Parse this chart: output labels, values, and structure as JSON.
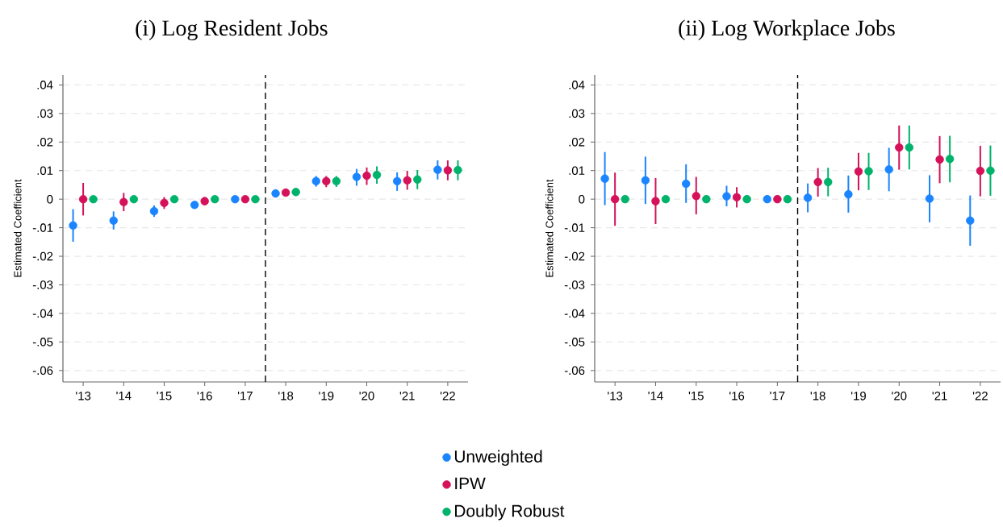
{
  "chart_data": [
    {
      "type": "scatter",
      "title": "(i) Log Resident Jobs",
      "ylabel": "Estimated Coefficient",
      "xlim": [
        2012.5,
        2022.5
      ],
      "xticks": [
        {
          "value": 2013,
          "label": "'13"
        },
        {
          "value": 2014,
          "label": "'14"
        },
        {
          "value": 2015,
          "label": "'15"
        },
        {
          "value": 2016,
          "label": "'16"
        },
        {
          "value": 2017,
          "label": "'17"
        },
        {
          "value": 2018,
          "label": "'18"
        },
        {
          "value": 2019,
          "label": "'19"
        },
        {
          "value": 2020,
          "label": "'20"
        },
        {
          "value": 2021,
          "label": "'21"
        },
        {
          "value": 2022,
          "label": "'22"
        }
      ],
      "ylim": [
        -0.064,
        0.0435
      ],
      "yticks": [
        {
          "value": 0.04,
          "label": ".04"
        },
        {
          "value": 0.03,
          "label": ".03"
        },
        {
          "value": 0.02,
          "label": ".02"
        },
        {
          "value": 0.01,
          "label": ".01"
        },
        0,
        {
          "value": -0.01,
          "label": "-.01"
        },
        {
          "value": -0.02,
          "label": "-.02"
        },
        {
          "value": -0.03,
          "label": "-.03"
        },
        {
          "value": -0.04,
          "label": "-.04"
        },
        {
          "value": -0.05,
          "label": "-.05"
        },
        {
          "value": -0.06,
          "label": "-.06"
        }
      ],
      "grid": "y",
      "marker": "circle",
      "legend": "bottom",
      "ref_lines": [
        {
          "axis": "x",
          "value": 2017.5,
          "color": "#000000",
          "line_style": "dashed"
        }
      ],
      "series": [
        {
          "name": "Unweighted",
          "color": "#1a85ff",
          "x": [
            2012.75,
            2013.75,
            2014.75,
            2015.75,
            2016.75,
            2017.75,
            2018.75,
            2019.75,
            2020.75,
            2021.75
          ],
          "values": [
            -0.0092,
            -0.0075,
            -0.0042,
            -0.002,
            0,
            0.002,
            0.0063,
            0.0078,
            0.0063,
            0.0103
          ],
          "errors": [
            [
              -0.0149,
              -0.0035
            ],
            [
              -0.0106,
              -0.0043
            ],
            [
              -0.0062,
              -0.0022
            ],
            [
              -0.003,
              -0.001
            ],
            null,
            [
              0.0009,
              0.0033
            ],
            [
              0.0044,
              0.0081
            ],
            [
              0.0047,
              0.0106
            ],
            [
              0.0029,
              0.0094
            ],
            [
              0.0069,
              0.0136
            ]
          ]
        },
        {
          "name": "IPW",
          "color": "#d41159",
          "x": [
            2013,
            2014,
            2015,
            2016,
            2017,
            2018,
            2019,
            2020,
            2021,
            2022
          ],
          "values": [
            0,
            -0.001,
            -0.0013,
            -0.0007,
            0,
            0.0023,
            0.0063,
            0.0082,
            0.0066,
            0.0101
          ],
          "errors": [
            [
              -0.0057,
              0.0057
            ],
            [
              -0.0042,
              0.0022
            ],
            [
              -0.0034,
              0.0007
            ],
            [
              -0.0021,
              0.0007
            ],
            null,
            [
              0.0012,
              0.0036
            ],
            [
              0.0042,
              0.0081
            ],
            [
              0.005,
              0.0111
            ],
            [
              0.0033,
              0.0099
            ],
            [
              0.0066,
              0.0136
            ]
          ]
        },
        {
          "name": "Doubly Robust",
          "color": "#00b36b",
          "x": [
            2013.25,
            2014.25,
            2015.25,
            2016.25,
            2017.25,
            2018.25,
            2019.25,
            2020.25,
            2021.25,
            2022.25
          ],
          "values": [
            0,
            0,
            0,
            0,
            0,
            0.0025,
            0.0063,
            0.0085,
            0.0069,
            0.0102
          ],
          "errors": [
            null,
            null,
            null,
            null,
            null,
            [
              0.0013,
              0.0039
            ],
            [
              0.0043,
              0.0081
            ],
            [
              0.0054,
              0.0115
            ],
            [
              0.0035,
              0.0102
            ],
            [
              0.0066,
              0.0136
            ]
          ]
        }
      ]
    },
    {
      "type": "scatter",
      "title": "(ii) Log Workplace Jobs",
      "ylabel": "Estimated Coefficient",
      "xlim": [
        2012.5,
        2022.5
      ],
      "xticks": [
        {
          "value": 2013,
          "label": "'13"
        },
        {
          "value": 2014,
          "label": "'14"
        },
        {
          "value": 2015,
          "label": "'15"
        },
        {
          "value": 2016,
          "label": "'16"
        },
        {
          "value": 2017,
          "label": "'17"
        },
        {
          "value": 2018,
          "label": "'18"
        },
        {
          "value": 2019,
          "label": "'19"
        },
        {
          "value": 2020,
          "label": "'20"
        },
        {
          "value": 2021,
          "label": "'21"
        },
        {
          "value": 2022,
          "label": "'22"
        }
      ],
      "ylim": [
        -0.064,
        0.0435
      ],
      "yticks": [
        {
          "value": 0.04,
          "label": ".04"
        },
        {
          "value": 0.03,
          "label": ".03"
        },
        {
          "value": 0.02,
          "label": ".02"
        },
        {
          "value": 0.01,
          "label": ".01"
        },
        0,
        {
          "value": -0.01,
          "label": "-.01"
        },
        {
          "value": -0.02,
          "label": "-.02"
        },
        {
          "value": -0.03,
          "label": "-.03"
        },
        {
          "value": -0.04,
          "label": "-.04"
        },
        {
          "value": -0.05,
          "label": "-.05"
        },
        {
          "value": -0.06,
          "label": "-.06"
        }
      ],
      "grid": "y",
      "marker": "circle",
      "ref_lines": [
        {
          "axis": "x",
          "value": 2017.5,
          "color": "#000000",
          "line_style": "dashed"
        }
      ],
      "series": [
        {
          "color": "#1a85ff",
          "x": [
            2012.75,
            2013.75,
            2014.75,
            2015.75,
            2016.75,
            2017.75,
            2018.75,
            2019.75,
            2020.75,
            2021.75
          ],
          "values": [
            0.0072,
            0.0066,
            0.0054,
            0.001,
            0,
            0.0005,
            0.0017,
            0.0104,
            0.0002,
            -0.0075
          ],
          "errors": [
            [
              -0.0021,
              0.0165
            ],
            [
              -0.0017,
              0.0149
            ],
            [
              -0.0013,
              0.0122
            ],
            [
              -0.0025,
              0.0047
            ],
            null,
            [
              -0.0046,
              0.0055
            ],
            [
              -0.0047,
              0.0083
            ],
            [
              0.0028,
              0.018
            ],
            [
              -0.0081,
              0.0084
            ],
            [
              -0.0163,
              0.0013
            ]
          ]
        },
        {
          "color": "#d41159",
          "x": [
            2013,
            2014,
            2015,
            2016,
            2017,
            2018,
            2019,
            2020,
            2021,
            2022
          ],
          "values": [
            0,
            -0.0007,
            0.0011,
            0.0007,
            0,
            0.006,
            0.0097,
            0.0181,
            0.0139,
            0.0099
          ],
          "errors": [
            [
              -0.0093,
              0.0093
            ],
            [
              -0.0087,
              0.0074
            ],
            [
              -0.0053,
              0.0078
            ],
            [
              -0.0029,
              0.0042
            ],
            null,
            [
              0.0009,
              0.0109
            ],
            [
              0.0031,
              0.0162
            ],
            [
              0.0103,
              0.0258
            ],
            [
              0.0056,
              0.0221
            ],
            [
              0.001,
              0.0187
            ]
          ]
        },
        {
          "color": "#00b36b",
          "x": [
            2013.25,
            2014.25,
            2015.25,
            2016.25,
            2017.25,
            2018.25,
            2019.25,
            2020.25,
            2021.25,
            2022.25
          ],
          "values": [
            0,
            0,
            0,
            0,
            0,
            0.006,
            0.0098,
            0.0181,
            0.0141,
            0.01
          ],
          "errors": [
            null,
            null,
            null,
            null,
            null,
            [
              0.001,
              0.011
            ],
            [
              0.0032,
              0.0162
            ],
            [
              0.0104,
              0.0258
            ],
            [
              0.0059,
              0.0222
            ],
            [
              0.0012,
              0.0188
            ]
          ]
        }
      ]
    }
  ]
}
